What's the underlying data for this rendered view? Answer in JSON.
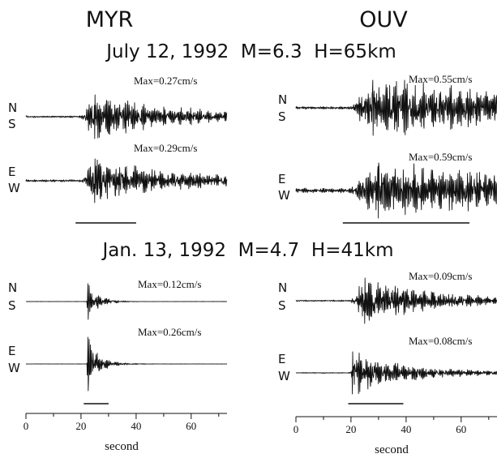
{
  "stations": [
    {
      "id": "myr",
      "name": "MYR"
    },
    {
      "id": "ouv",
      "name": "OUV"
    }
  ],
  "x_axis": {
    "label": "second",
    "ticks": [
      "0",
      "20",
      "40",
      "60"
    ],
    "range": [
      0,
      73
    ]
  },
  "events": [
    {
      "id": "ev1",
      "title": "July 12, 1992  M=6.3  H=65km",
      "panels": [
        {
          "station": "myr",
          "component": "ns",
          "labels": [
            "N",
            "S"
          ],
          "max_label": "Max=0.27cm/s",
          "max_cms": 0.27,
          "onset_s": 20,
          "peak_s": 25,
          "decay_s": 30,
          "noise": 0.04
        },
        {
          "station": "myr",
          "component": "ew",
          "labels": [
            "E",
            "W"
          ],
          "max_label": "Max=0.29cm/s",
          "max_cms": 0.29,
          "onset_s": 20,
          "peak_s": 25,
          "decay_s": 30,
          "noise": 0.05
        },
        {
          "station": "ouv",
          "component": "ns",
          "labels": [
            "N",
            "S"
          ],
          "max_label": "Max=0.55cm/s",
          "max_cms": 0.55,
          "onset_s": 20,
          "peak_s": 28,
          "decay_s": 80,
          "noise": 0.05
        },
        {
          "station": "ouv",
          "component": "ew",
          "labels": [
            "E",
            "W"
          ],
          "max_label": "Max=0.59cm/s",
          "max_cms": 0.59,
          "onset_s": 20,
          "peak_s": 30,
          "decay_s": 80,
          "noise": 0.08
        }
      ],
      "duration_bars": [
        {
          "station": "myr",
          "start_s": 18,
          "end_s": 40
        },
        {
          "station": "ouv",
          "start_s": 17,
          "end_s": 63
        }
      ]
    },
    {
      "id": "ev2",
      "title": "Jan. 13, 1992  M=4.7  H=41km",
      "panels": [
        {
          "station": "myr",
          "component": "ns",
          "labels": [
            "N",
            "S"
          ],
          "max_label": "Max=0.12cm/s",
          "max_cms": 0.12,
          "onset_s": 22,
          "peak_s": 22.5,
          "decay_s": 4,
          "noise": 0.005
        },
        {
          "station": "myr",
          "component": "ew",
          "labels": [
            "E",
            "W"
          ],
          "max_label": "Max=0.26cm/s",
          "max_cms": 0.26,
          "onset_s": 22,
          "peak_s": 22.5,
          "decay_s": 4,
          "noise": 0.005
        },
        {
          "station": "ouv",
          "component": "ns",
          "labels": [
            "N",
            "S"
          ],
          "max_label": "Max=0.09cm/s",
          "max_cms": 0.09,
          "onset_s": 20,
          "peak_s": 25,
          "decay_s": 25,
          "noise": 0.03
        },
        {
          "station": "ouv",
          "component": "ew",
          "labels": [
            "E",
            "W"
          ],
          "max_label": "Max=0.08cm/s",
          "max_cms": 0.08,
          "onset_s": 20,
          "peak_s": 20.5,
          "decay_s": 20,
          "noise": 0.02
        }
      ],
      "duration_bars": [
        {
          "station": "myr",
          "start_s": 21,
          "end_s": 30
        },
        {
          "station": "ouv",
          "start_s": 19,
          "end_s": 39
        }
      ]
    }
  ]
}
